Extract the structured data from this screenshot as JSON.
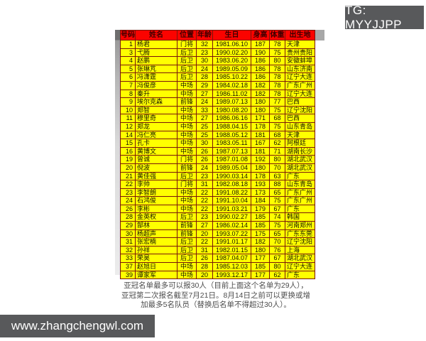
{
  "tg_badge": {
    "label": "TG: MYYJJPP",
    "bg": "#58595b",
    "fg": "#ffffff"
  },
  "watermark": {
    "label": "www.zhangchengwl.com",
    "bg": "#58595b",
    "fg": "#ffffff"
  },
  "roster": {
    "header": [
      "号码",
      "姓名",
      "位置",
      "年龄",
      "生日",
      "身高",
      "体重",
      "出生地"
    ],
    "header_bg": "#fb0300",
    "header_fg": "#3c0000",
    "row_bg": "#ffff00",
    "grid_color": "#7a150a",
    "rows": [
      [
        "1",
        "杨君",
        "门将",
        "32",
        "1981.06.10",
        "187",
        "78",
        "天津"
      ],
      [
        "3",
        "弋腾",
        "后卫",
        "23",
        "1990.02.20",
        "190",
        "75",
        "贵州贵阳"
      ],
      [
        "4",
        "赵鹏",
        "后卫",
        "30",
        "1983.06.20",
        "186",
        "80",
        "安徽蚌埠"
      ],
      [
        "5",
        "张琳芃",
        "后卫",
        "24",
        "1989.05.09",
        "186",
        "78",
        "山东济南"
      ],
      [
        "6",
        "冯潇霆",
        "后卫",
        "28",
        "1985.10.22",
        "186",
        "78",
        "辽宁大连"
      ],
      [
        "7",
        "冯俊彦",
        "中场",
        "29",
        "1984.02.18",
        "182",
        "78",
        "广东广州"
      ],
      [
        "8",
        "秦升",
        "中场",
        "27",
        "1986.11.02",
        "182",
        "78",
        "辽宁大连"
      ],
      [
        "9",
        "埃尔克森",
        "前锋",
        "24",
        "1989.07.13",
        "180",
        "77",
        "巴西"
      ],
      [
        "10",
        "郑智",
        "中场",
        "33",
        "1980.08.20",
        "180",
        "75",
        "辽宁沈阳"
      ],
      [
        "11",
        "穆里奇",
        "中场",
        "27",
        "1986.06.16",
        "171",
        "68",
        "巴西"
      ],
      [
        "12",
        "郑龙",
        "中场",
        "25",
        "1988.04.15",
        "178",
        "75",
        "山东青岛"
      ],
      [
        "14",
        "冯仁亮",
        "中场",
        "25",
        "1988.05.12",
        "181",
        "68",
        "天津"
      ],
      [
        "15",
        "孔卡",
        "中场",
        "30",
        "1983.05.11",
        "167",
        "62",
        "阿根廷"
      ],
      [
        "16",
        "黄博文",
        "中场",
        "26",
        "1987.07.13",
        "181",
        "71",
        "湖南长沙"
      ],
      [
        "19",
        "曾诚",
        "门将",
        "26",
        "1987.01.08",
        "192",
        "80",
        "湖北武汉"
      ],
      [
        "20",
        "倪波",
        "前锋",
        "24",
        "1989.05.04",
        "180",
        "70",
        "湖北武汉"
      ],
      [
        "21",
        "黄佳强",
        "后卫",
        "23",
        "1990.03.14",
        "178",
        "63",
        "广东"
      ],
      [
        "22",
        "李帅",
        "门将",
        "31",
        "1982.08.18",
        "193",
        "88",
        "山东青岛"
      ],
      [
        "23",
        "李智朗",
        "中场",
        "22",
        "1991.08.22",
        "173",
        "65",
        "广东广州"
      ],
      [
        "24",
        "石鸿俊",
        "中场",
        "22",
        "1991.10.04",
        "184",
        "75",
        "广东广州"
      ],
      [
        "26",
        "李彬",
        "中场",
        "22",
        "1991.03.21",
        "179",
        "67",
        "广东"
      ],
      [
        "28",
        "金英权",
        "后卫",
        "23",
        "1990.02.27",
        "185",
        "74",
        "韩国"
      ],
      [
        "29",
        "郜林",
        "前锋",
        "27",
        "1986.02.14",
        "185",
        "75",
        "河南郑州"
      ],
      [
        "30",
        "杨超声",
        "前锋",
        "20",
        "1993.07.22",
        "175",
        "65",
        "广东东莞"
      ],
      [
        "31",
        "张宏楠",
        "后卫",
        "22",
        "1991.01.17",
        "182",
        "70",
        "辽宁沈阳"
      ],
      [
        "32",
        "孙祥",
        "后卫",
        "31",
        "1982.01.15",
        "180",
        "76",
        "上海"
      ],
      [
        "33",
        "荣昊",
        "后卫",
        "26",
        "1987.04.07",
        "177",
        "67",
        "湖北武汉"
      ],
      [
        "37",
        "赵旭日",
        "中场",
        "28",
        "1985.12.03",
        "185",
        "80",
        "辽宁大连"
      ],
      [
        "39",
        "谭家军",
        "中场",
        "20",
        "1993.12.17",
        "177",
        "62",
        "广东"
      ]
    ]
  },
  "footnote": {
    "lines": [
      "亚冠名单最多可以报30人（目前上面这个名单为29人），",
      "亚冠第二次报名截至7月21日。8月14日之前可以更换或增",
      "加最多5名队员（替换后名单不得超过30人）。"
    ]
  }
}
